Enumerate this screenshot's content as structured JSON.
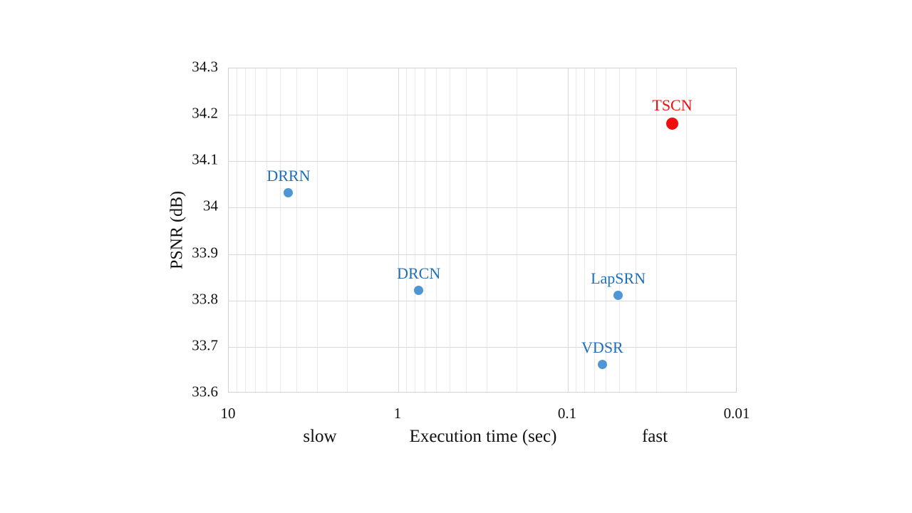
{
  "chart_data": {
    "type": "scatter",
    "title": "",
    "xlabel": "Execution time (sec)",
    "ylabel": "PSNR (dB)",
    "x_axis": {
      "scale": "log",
      "reversed": true,
      "min": 0.01,
      "max": 10,
      "ticks": [
        10,
        1,
        0.1,
        0.01
      ],
      "tick_labels": [
        "10",
        "1",
        "0.1",
        "0.01"
      ],
      "annotation_left": "slow",
      "annotation_right": "fast",
      "minor_gridlines": true
    },
    "y_axis": {
      "min": 33.6,
      "max": 34.3,
      "ticks": [
        34.3,
        34.2,
        34.1,
        34.0,
        33.9,
        33.8,
        33.7,
        33.6
      ],
      "tick_labels": [
        "34.3",
        "34.2",
        "34.1",
        "34",
        "33.9",
        "33.8",
        "33.7",
        "33.6"
      ]
    },
    "series": [
      {
        "name": "DRRN",
        "x": 4.4,
        "y": 34.03,
        "marker_color": "#4e96d6",
        "label_color": "#1f6fb8",
        "marker_size": 13
      },
      {
        "name": "DRCN",
        "x": 0.75,
        "y": 33.82,
        "marker_color": "#4e96d6",
        "label_color": "#1f6fb8",
        "marker_size": 13
      },
      {
        "name": "LapSRN",
        "x": 0.05,
        "y": 33.81,
        "marker_color": "#4e96d6",
        "label_color": "#1f6fb8",
        "marker_size": 13
      },
      {
        "name": "VDSR",
        "x": 0.062,
        "y": 33.66,
        "marker_color": "#4e96d6",
        "label_color": "#1f6fb8",
        "marker_size": 13
      },
      {
        "name": "TSCN",
        "x": 0.024,
        "y": 34.18,
        "marker_color": "#f20d0d",
        "label_color": "#f20d0d",
        "marker_size": 17,
        "highlight": true
      }
    ],
    "grid": {
      "major_color": "#d9d9d9",
      "minor_color": "#e9e9e9",
      "border_color": "#d2d2d2",
      "legend": "none"
    }
  }
}
